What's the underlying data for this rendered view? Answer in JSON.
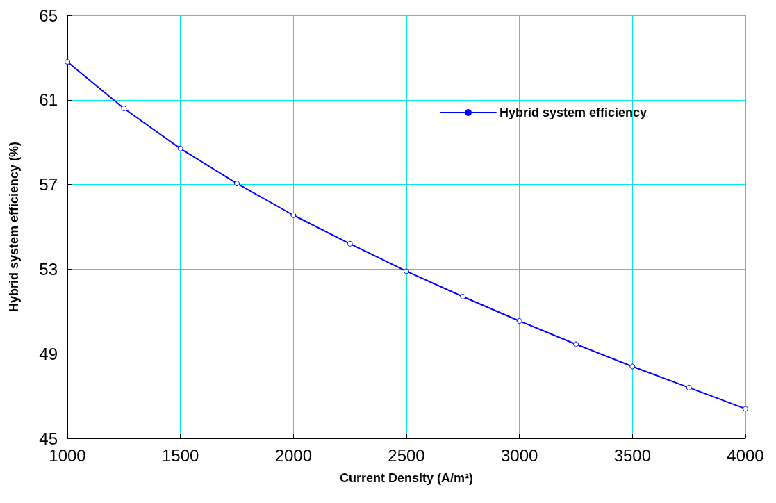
{
  "chart_data": {
    "type": "line",
    "xlabel": "Current Density (A/m²)",
    "ylabel": "Hybrid system efficiency (%)",
    "x": [
      1000,
      1250,
      1500,
      1750,
      2000,
      2250,
      2500,
      2750,
      3000,
      3250,
      3500,
      3750,
      4000
    ],
    "series": [
      {
        "name": "Hybrid system efficiency",
        "color": "#0000ff",
        "values": [
          62.8,
          60.6,
          58.7,
          57.05,
          55.55,
          54.2,
          52.9,
          51.7,
          50.55,
          49.45,
          48.4,
          47.4,
          46.4
        ]
      }
    ],
    "xlim": [
      1000,
      4000
    ],
    "xticks": [
      1000,
      1500,
      2000,
      2500,
      3000,
      3500,
      4000
    ],
    "ylim": [
      45,
      65
    ],
    "yticks": [
      45,
      49,
      53,
      57,
      61,
      65
    ],
    "grid": true,
    "legend": "top right",
    "marker": "circle",
    "line_style": "solid"
  }
}
